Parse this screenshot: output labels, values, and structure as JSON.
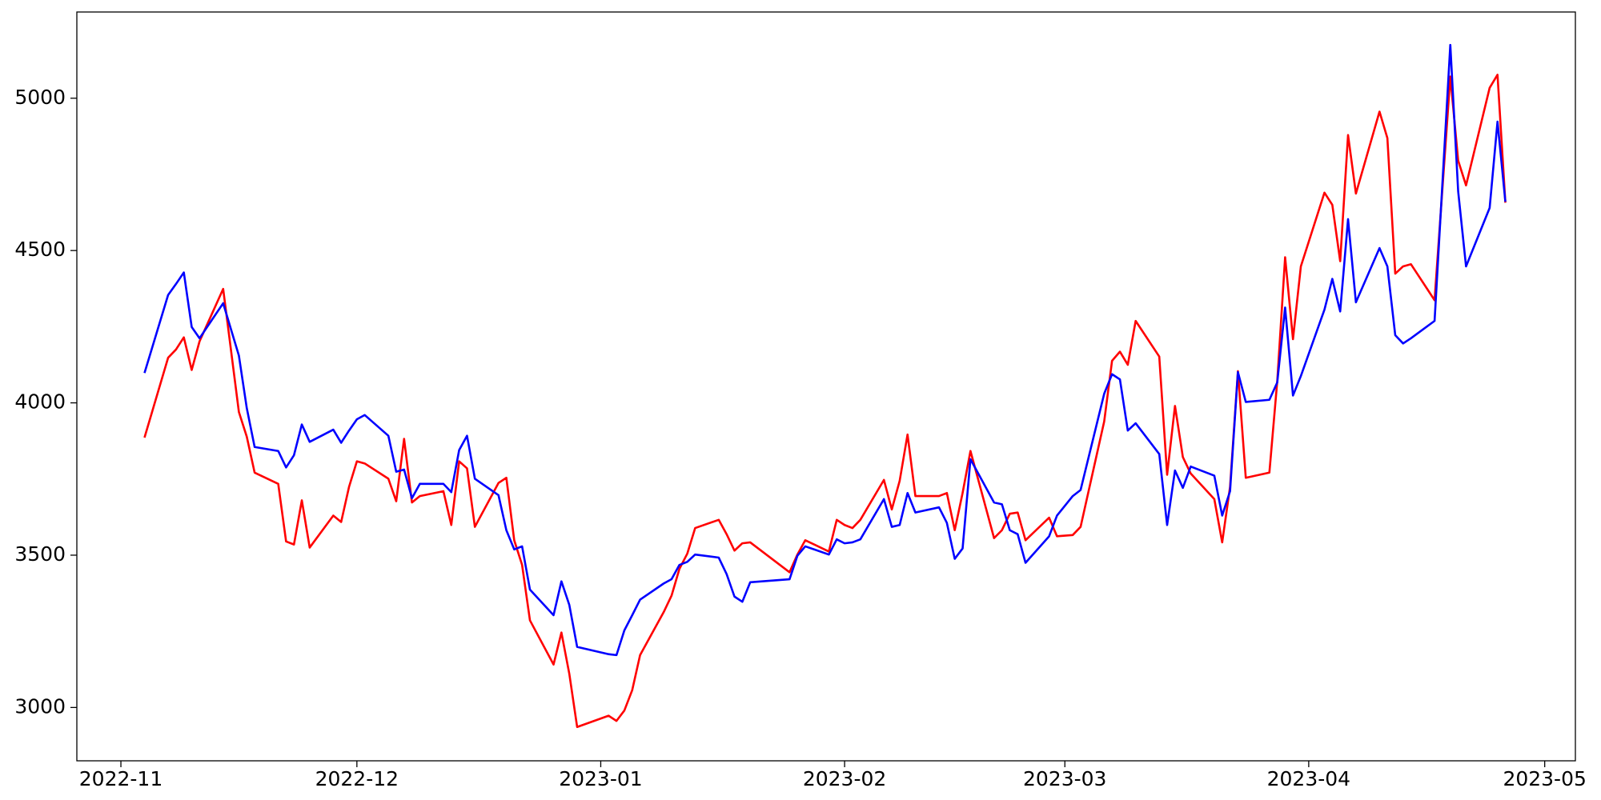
{
  "chart_data": {
    "type": "line",
    "x": [
      3,
      6,
      7,
      8,
      9,
      10,
      13,
      15,
      16,
      17,
      20,
      21,
      22,
      23,
      24,
      27,
      28,
      29,
      30,
      31,
      34,
      35,
      36,
      37,
      38,
      41,
      42,
      43,
      44,
      45,
      48,
      49,
      50,
      51,
      52,
      55,
      56,
      57,
      58,
      62,
      63,
      64,
      65,
      66,
      69,
      70,
      71,
      72,
      73,
      76,
      77,
      78,
      79,
      80,
      85,
      86,
      87,
      90,
      91,
      92,
      93,
      94,
      97,
      98,
      99,
      100,
      101,
      104,
      105,
      106,
      107,
      108,
      111,
      112,
      113,
      114,
      115,
      118,
      119,
      121,
      122,
      125,
      126,
      127,
      128,
      129,
      132,
      133,
      134,
      135,
      136,
      139,
      140,
      141,
      142,
      143,
      146,
      147,
      148,
      149,
      150,
      153,
      154,
      155,
      156,
      157,
      160,
      161,
      162,
      163,
      164,
      167,
      169,
      170,
      171,
      174,
      175,
      176
    ],
    "series": [
      {
        "color": "#ff0000",
        "values": [
          3886,
          4148,
          4175,
          4215,
          4108,
          4202,
          4374,
          3970,
          3889,
          3771,
          3734,
          3545,
          3535,
          3680,
          3525,
          3630,
          3609,
          3724,
          3808,
          3801,
          3751,
          3677,
          3882,
          3673,
          3694,
          3710,
          3599,
          3808,
          3785,
          3593,
          3737,
          3754,
          3549,
          3468,
          3286,
          3141,
          3246,
          3111,
          2936,
          2973,
          2956,
          2990,
          3057,
          3172,
          3313,
          3367,
          3455,
          3505,
          3589,
          3616,
          3569,
          3515,
          3539,
          3542,
          3444,
          3502,
          3549,
          3512,
          3616,
          3599,
          3589,
          3616,
          3747,
          3650,
          3744,
          3896,
          3694,
          3694,
          3704,
          3582,
          3704,
          3842,
          3556,
          3582,
          3636,
          3640,
          3549,
          3623,
          3562,
          3566,
          3593,
          3939,
          4138,
          4168,
          4125,
          4269,
          4152,
          3764,
          3990,
          3822,
          3768,
          3684,
          3542,
          3724,
          4104,
          3754,
          3771,
          4071,
          4478,
          4209,
          4448,
          4690,
          4650,
          4465,
          4879,
          4687,
          4956,
          4869,
          4424,
          4448,
          4455,
          4337,
          5071,
          4795,
          4714,
          5034,
          5077,
          4657
        ]
      },
      {
        "color": "#0000ff",
        "values": [
          4098,
          4354,
          4390,
          4428,
          4249,
          4212,
          4327,
          4155,
          3983,
          3855,
          3842,
          3788,
          3828,
          3929,
          3872,
          3912,
          3869,
          3909,
          3946,
          3960,
          3892,
          3774,
          3781,
          3687,
          3734,
          3734,
          3707,
          3845,
          3892,
          3751,
          3697,
          3582,
          3519,
          3529,
          3387,
          3303,
          3414,
          3337,
          3199,
          3175,
          3172,
          3253,
          3303,
          3354,
          3407,
          3421,
          3468,
          3478,
          3502,
          3492,
          3438,
          3364,
          3347,
          3411,
          3421,
          3498,
          3529,
          3502,
          3552,
          3539,
          3542,
          3552,
          3684,
          3593,
          3599,
          3704,
          3640,
          3657,
          3606,
          3488,
          3522,
          3815,
          3673,
          3667,
          3582,
          3569,
          3475,
          3562,
          3630,
          3694,
          3714,
          4030,
          4094,
          4077,
          3909,
          3933,
          3832,
          3599,
          3778,
          3721,
          3791,
          3761,
          3630,
          3710,
          4101,
          4003,
          4010,
          4067,
          4313,
          4024,
          4088,
          4306,
          4407,
          4300,
          4603,
          4330,
          4508,
          4448,
          4222,
          4195,
          4212,
          4269,
          5175,
          4694,
          4448,
          4640,
          4923,
          4660
        ]
      }
    ],
    "xlim": [
      -5.6,
      184.9
    ],
    "xticks": [
      {
        "value": 0,
        "label": "2022-11"
      },
      {
        "value": 30,
        "label": "2022-12"
      },
      {
        "value": 61,
        "label": "2023-01"
      },
      {
        "value": 92,
        "label": "2023-02"
      },
      {
        "value": 120,
        "label": "2023-03"
      },
      {
        "value": 151,
        "label": "2023-04"
      },
      {
        "value": 181,
        "label": "2023-05"
      }
    ],
    "ylim": [
      2825,
      5283
    ],
    "yticks": [
      3000,
      3500,
      4000,
      4500,
      5000
    ]
  }
}
